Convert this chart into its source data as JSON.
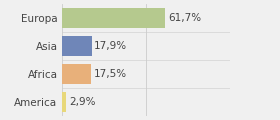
{
  "categories": [
    "Europa",
    "Asia",
    "Africa",
    "America"
  ],
  "values": [
    61.7,
    17.9,
    17.5,
    2.9
  ],
  "bar_colors": [
    "#b5c98e",
    "#6f86b8",
    "#e8b07a",
    "#e8d87a"
  ],
  "labels": [
    "61,7%",
    "17,9%",
    "17,5%",
    "2,9%"
  ],
  "xlim": [
    0,
    100
  ],
  "background_color": "#f0f0f0",
  "bar_height": 0.72,
  "label_fontsize": 7.5,
  "ytick_fontsize": 7.5,
  "figsize": [
    2.8,
    1.2
  ],
  "dpi": 100,
  "grid_lines": [
    0,
    50,
    100
  ]
}
